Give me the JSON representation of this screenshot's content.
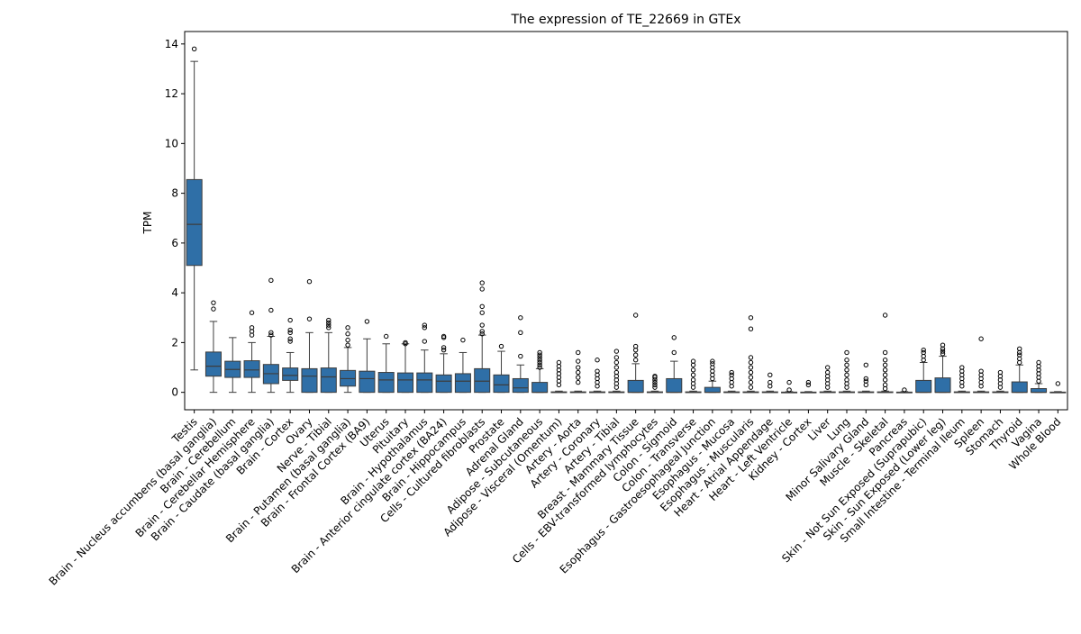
{
  "chart_data": {
    "type": "box",
    "title": "The expression of TE_22669 in GTEx",
    "xlabel": "",
    "ylabel": "TPM",
    "ylim": [
      -0.7,
      14.5
    ],
    "yticks": [
      0,
      2,
      4,
      6,
      8,
      10,
      12,
      14
    ],
    "grid": false,
    "legend": "none",
    "box_color": "#2f6fa7",
    "categories": [
      "Testis",
      "Brain - Nucleus accumbens (basal ganglia)",
      "Brain - Cerebellum",
      "Brain - Cerebellar Hemisphere",
      "Brain - Caudate (basal ganglia)",
      "Brain - Cortex",
      "Ovary",
      "Nerve - Tibial",
      "Brain - Putamen (basal ganglia)",
      "Brain - Frontal Cortex (BA9)",
      "Uterus",
      "Pituitary",
      "Brain - Hypothalamus",
      "Brain - Anterior cingulate cortex (BA24)",
      "Brain - Hippocampus",
      "Cells - Cultured fibroblasts",
      "Prostate",
      "Adrenal Gland",
      "Adipose - Subcutaneous",
      "Adipose - Visceral (Omentum)",
      "Artery - Aorta",
      "Artery - Coronary",
      "Artery - Tibial",
      "Breast - Mammary Tissue",
      "Cells - EBV-transformed lymphocytes",
      "Colon - Sigmoid",
      "Colon - Transverse",
      "Esophagus - Gastroesophageal Junction",
      "Esophagus - Mucosa",
      "Esophagus - Muscularis",
      "Heart - Atrial Appendage",
      "Heart - Left Ventricle",
      "Kidney - Cortex",
      "Liver",
      "Lung",
      "Minor Salivary Gland",
      "Muscle - Skeletal",
      "Pancreas",
      "Skin - Not Sun Exposed (Suprapubic)",
      "Skin - Sun Exposed (Lower leg)",
      "Small Intestine - Terminal Ileum",
      "Spleen",
      "Stomach",
      "Thyroid",
      "Vagina",
      "Whole Blood"
    ],
    "boxes": [
      {
        "min": 0.9,
        "q1": 5.1,
        "median": 6.75,
        "q3": 8.55,
        "max": 13.3,
        "outliers": [
          13.8
        ]
      },
      {
        "min": 0.0,
        "q1": 0.65,
        "median": 1.05,
        "q3": 1.62,
        "max": 2.85,
        "outliers": [
          3.35,
          3.6
        ]
      },
      {
        "min": 0.0,
        "q1": 0.6,
        "median": 0.92,
        "q3": 1.25,
        "max": 2.2,
        "outliers": []
      },
      {
        "min": 0.0,
        "q1": 0.6,
        "median": 0.9,
        "q3": 1.27,
        "max": 2.0,
        "outliers": [
          2.3,
          2.45,
          2.6,
          3.2
        ]
      },
      {
        "min": 0.0,
        "q1": 0.35,
        "median": 0.75,
        "q3": 1.12,
        "max": 2.25,
        "outliers": [
          2.3,
          2.4,
          3.3,
          4.5
        ]
      },
      {
        "min": 0.0,
        "q1": 0.48,
        "median": 0.68,
        "q3": 0.98,
        "max": 1.6,
        "outliers": [
          2.05,
          2.15,
          2.4,
          2.5,
          2.9
        ]
      },
      {
        "min": 0.0,
        "q1": 0.0,
        "median": 0.65,
        "q3": 0.95,
        "max": 2.4,
        "outliers": [
          2.95,
          4.45
        ]
      },
      {
        "min": 0.0,
        "q1": 0.0,
        "median": 0.62,
        "q3": 0.98,
        "max": 2.4,
        "outliers": [
          2.6,
          2.7,
          2.8,
          2.9
        ]
      },
      {
        "min": 0.0,
        "q1": 0.25,
        "median": 0.55,
        "q3": 0.88,
        "max": 1.8,
        "outliers": [
          1.9,
          2.1,
          2.35,
          2.6
        ]
      },
      {
        "min": 0.0,
        "q1": 0.0,
        "median": 0.55,
        "q3": 0.85,
        "max": 2.15,
        "outliers": [
          2.85
        ]
      },
      {
        "min": 0.0,
        "q1": 0.0,
        "median": 0.5,
        "q3": 0.8,
        "max": 1.95,
        "outliers": [
          2.25
        ]
      },
      {
        "min": 0.0,
        "q1": 0.0,
        "median": 0.5,
        "q3": 0.78,
        "max": 1.95,
        "outliers": [
          1.95,
          2.0
        ]
      },
      {
        "min": 0.0,
        "q1": 0.0,
        "median": 0.5,
        "q3": 0.78,
        "max": 1.7,
        "outliers": [
          2.05,
          2.6,
          2.7
        ]
      },
      {
        "min": 0.0,
        "q1": 0.0,
        "median": 0.45,
        "q3": 0.7,
        "max": 1.55,
        "outliers": [
          1.7,
          1.8,
          2.2,
          2.25
        ]
      },
      {
        "min": 0.0,
        "q1": 0.0,
        "median": 0.45,
        "q3": 0.75,
        "max": 1.6,
        "outliers": [
          2.1
        ]
      },
      {
        "min": 0.0,
        "q1": 0.0,
        "median": 0.45,
        "q3": 0.95,
        "max": 2.3,
        "outliers": [
          2.35,
          2.45,
          2.7,
          3.2,
          3.45,
          4.15,
          4.4
        ]
      },
      {
        "min": 0.0,
        "q1": 0.0,
        "median": 0.3,
        "q3": 0.7,
        "max": 1.65,
        "outliers": [
          1.85
        ]
      },
      {
        "min": 0.0,
        "q1": 0.0,
        "median": 0.18,
        "q3": 0.55,
        "max": 1.1,
        "outliers": [
          1.45,
          2.4,
          3.0
        ]
      },
      {
        "min": 0.0,
        "q1": 0.0,
        "median": 0.0,
        "q3": 0.4,
        "max": 0.95,
        "outliers": [
          1.0,
          1.1,
          1.2,
          1.3,
          1.4,
          1.5,
          1.6
        ]
      },
      {
        "min": 0.0,
        "q1": 0.0,
        "median": 0.0,
        "q3": 0.02,
        "max": 0.05,
        "outliers": [
          0.3,
          0.45,
          0.6,
          0.75,
          0.9,
          1.05,
          1.2
        ]
      },
      {
        "min": 0.0,
        "q1": 0.0,
        "median": 0.0,
        "q3": 0.02,
        "max": 0.05,
        "outliers": [
          0.4,
          0.6,
          0.8,
          1.0,
          1.25,
          1.6
        ]
      },
      {
        "min": 0.0,
        "q1": 0.0,
        "median": 0.0,
        "q3": 0.02,
        "max": 0.05,
        "outliers": [
          0.25,
          0.4,
          0.55,
          0.7,
          0.85,
          1.3
        ]
      },
      {
        "min": 0.0,
        "q1": 0.0,
        "median": 0.0,
        "q3": 0.02,
        "max": 0.05,
        "outliers": [
          0.2,
          0.35,
          0.5,
          0.65,
          0.8,
          1.0,
          1.2,
          1.4,
          1.65
        ]
      },
      {
        "min": 0.0,
        "q1": 0.0,
        "median": 0.0,
        "q3": 0.48,
        "max": 1.15,
        "outliers": [
          1.3,
          1.5,
          1.7,
          1.85,
          3.1
        ]
      },
      {
        "min": 0.0,
        "q1": 0.0,
        "median": 0.0,
        "q3": 0.02,
        "max": 0.05,
        "outliers": [
          0.2,
          0.3,
          0.4,
          0.5,
          0.6,
          0.65
        ]
      },
      {
        "min": 0.0,
        "q1": 0.0,
        "median": 0.0,
        "q3": 0.55,
        "max": 1.25,
        "outliers": [
          1.6,
          2.2
        ]
      },
      {
        "min": 0.0,
        "q1": 0.0,
        "median": 0.0,
        "q3": 0.02,
        "max": 0.05,
        "outliers": [
          0.2,
          0.35,
          0.5,
          0.7,
          0.9,
          1.1,
          1.25
        ]
      },
      {
        "min": 0.0,
        "q1": 0.0,
        "median": 0.0,
        "q3": 0.2,
        "max": 0.45,
        "outliers": [
          0.55,
          0.7,
          0.85,
          1.0,
          1.15,
          1.25
        ]
      },
      {
        "min": 0.0,
        "q1": 0.0,
        "median": 0.0,
        "q3": 0.02,
        "max": 0.05,
        "outliers": [
          0.25,
          0.4,
          0.55,
          0.7,
          0.8
        ]
      },
      {
        "min": 0.0,
        "q1": 0.0,
        "median": 0.0,
        "q3": 0.02,
        "max": 0.05,
        "outliers": [
          0.2,
          0.4,
          0.6,
          0.8,
          1.0,
          1.2,
          1.4,
          2.55,
          3.0
        ]
      },
      {
        "min": 0.0,
        "q1": 0.0,
        "median": 0.0,
        "q3": 0.02,
        "max": 0.05,
        "outliers": [
          0.25,
          0.4,
          0.7
        ]
      },
      {
        "min": 0.0,
        "q1": 0.0,
        "median": 0.0,
        "q3": 0.01,
        "max": 0.03,
        "outliers": [
          0.1,
          0.4
        ]
      },
      {
        "min": 0.0,
        "q1": 0.0,
        "median": 0.0,
        "q3": 0.01,
        "max": 0.03,
        "outliers": [
          0.3,
          0.4
        ]
      },
      {
        "min": 0.0,
        "q1": 0.0,
        "median": 0.0,
        "q3": 0.02,
        "max": 0.05,
        "outliers": [
          0.2,
          0.35,
          0.5,
          0.65,
          0.8,
          1.0
        ]
      },
      {
        "min": 0.0,
        "q1": 0.0,
        "median": 0.0,
        "q3": 0.02,
        "max": 0.05,
        "outliers": [
          0.2,
          0.35,
          0.5,
          0.7,
          0.9,
          1.1,
          1.3,
          1.6
        ]
      },
      {
        "min": 0.0,
        "q1": 0.0,
        "median": 0.0,
        "q3": 0.02,
        "max": 0.05,
        "outliers": [
          0.3,
          0.45,
          0.55,
          1.1
        ]
      },
      {
        "min": 0.0,
        "q1": 0.0,
        "median": 0.0,
        "q3": 0.02,
        "max": 0.05,
        "outliers": [
          0.15,
          0.3,
          0.5,
          0.7,
          0.9,
          1.1,
          1.3,
          1.6,
          3.1
        ]
      },
      {
        "min": 0.0,
        "q1": 0.0,
        "median": 0.0,
        "q3": 0.01,
        "max": 0.03,
        "outliers": [
          0.1
        ]
      },
      {
        "min": 0.0,
        "q1": 0.0,
        "median": 0.0,
        "q3": 0.48,
        "max": 1.2,
        "outliers": [
          1.3,
          1.45,
          1.6,
          1.7
        ]
      },
      {
        "min": 0.0,
        "q1": 0.0,
        "median": 0.0,
        "q3": 0.58,
        "max": 1.45,
        "outliers": [
          1.55,
          1.65,
          1.75,
          1.9
        ]
      },
      {
        "min": 0.0,
        "q1": 0.0,
        "median": 0.0,
        "q3": 0.02,
        "max": 0.05,
        "outliers": [
          0.25,
          0.4,
          0.55,
          0.7,
          0.85,
          1.0
        ]
      },
      {
        "min": 0.0,
        "q1": 0.0,
        "median": 0.0,
        "q3": 0.02,
        "max": 0.05,
        "outliers": [
          0.25,
          0.4,
          0.55,
          0.7,
          0.85,
          2.15
        ]
      },
      {
        "min": 0.0,
        "q1": 0.0,
        "median": 0.0,
        "q3": 0.02,
        "max": 0.05,
        "outliers": [
          0.2,
          0.35,
          0.5,
          0.65,
          0.8
        ]
      },
      {
        "min": 0.0,
        "q1": 0.0,
        "median": 0.0,
        "q3": 0.42,
        "max": 1.1,
        "outliers": [
          1.2,
          1.35,
          1.5,
          1.6,
          1.75
        ]
      },
      {
        "min": 0.0,
        "q1": 0.0,
        "median": 0.0,
        "q3": 0.15,
        "max": 0.35,
        "outliers": [
          0.45,
          0.6,
          0.75,
          0.9,
          1.05,
          1.2
        ]
      },
      {
        "min": 0.0,
        "q1": 0.0,
        "median": 0.0,
        "q3": 0.01,
        "max": 0.03,
        "outliers": [
          0.35
        ]
      }
    ]
  }
}
